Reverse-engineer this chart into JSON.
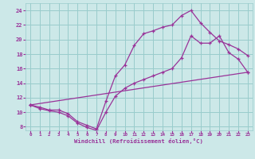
{
  "xlabel": "Windchill (Refroidissement éolien,°C)",
  "bg_color": "#cce8e8",
  "grid_color": "#99cccc",
  "line_color": "#993399",
  "xlim": [
    -0.5,
    23.5
  ],
  "ylim": [
    7.5,
    25.0
  ],
  "xticks": [
    0,
    1,
    2,
    3,
    4,
    5,
    6,
    7,
    8,
    9,
    10,
    11,
    12,
    13,
    14,
    15,
    16,
    17,
    18,
    19,
    20,
    21,
    22,
    23
  ],
  "yticks": [
    8,
    10,
    12,
    14,
    16,
    18,
    20,
    22,
    24
  ],
  "series1_x": [
    0,
    1,
    2,
    3,
    4,
    5,
    6,
    7,
    8,
    9,
    10,
    11,
    12,
    13,
    14,
    15,
    16,
    17,
    18,
    19,
    20,
    21,
    22,
    23
  ],
  "series1_y": [
    11.0,
    10.7,
    10.3,
    10.3,
    9.8,
    8.7,
    8.2,
    7.7,
    11.5,
    15.0,
    16.5,
    19.2,
    20.8,
    21.2,
    21.7,
    22.0,
    23.3,
    24.0,
    22.3,
    21.0,
    19.8,
    19.3,
    18.7,
    17.8
  ],
  "series2_x": [
    0,
    1,
    2,
    3,
    4,
    5,
    6,
    7,
    8,
    9,
    10,
    11,
    12,
    13,
    14,
    15,
    16,
    17,
    18,
    19,
    20,
    21,
    22,
    23
  ],
  "series2_y": [
    11.0,
    10.5,
    10.2,
    10.0,
    9.5,
    8.5,
    7.9,
    7.5,
    10.0,
    12.2,
    13.3,
    14.0,
    14.5,
    15.0,
    15.5,
    16.0,
    17.5,
    20.5,
    19.5,
    19.5,
    20.5,
    18.2,
    17.3,
    15.5
  ],
  "series3_x": [
    0,
    23
  ],
  "series3_y": [
    11.0,
    15.5
  ]
}
